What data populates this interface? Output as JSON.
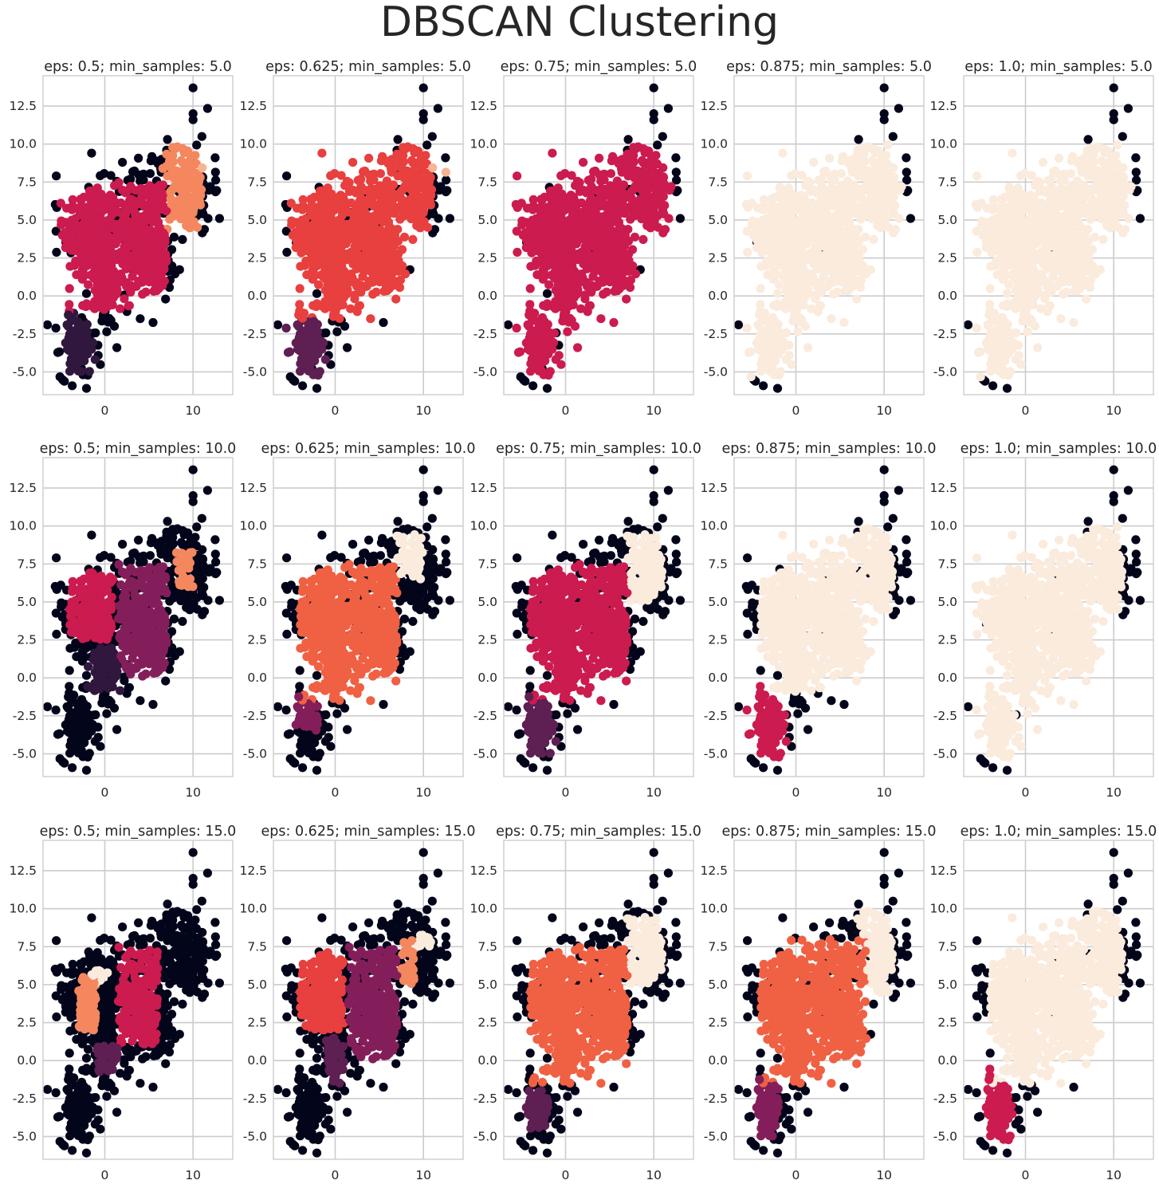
{
  "title": "DBSCAN Clustering",
  "palette": {
    "noise": "#03051a",
    "c1": "#30173d",
    "c2": "#5e1f53",
    "c3": "#841e5a",
    "c4": "#cb1b4f",
    "c5": "#e83f3f",
    "c6": "#f06043",
    "c7": "#f4875e",
    "c8": "#f7b495",
    "c9": "#faebdd"
  },
  "chart_data": [
    {
      "type": "scatter",
      "title": "eps: 0.5; min_samples: 5.0",
      "eps": 0.5,
      "min_samples": 5.0,
      "xlim": [
        -7,
        14.5
      ],
      "ylim": [
        -6.5,
        14.5
      ],
      "xticks": [
        "0",
        "10"
      ],
      "yticks": [
        "12.5",
        "10.0",
        "7.5",
        "5.0",
        "2.5",
        "0.0",
        "-2.5",
        "-5.0"
      ],
      "noise_fraction": 0.35,
      "clusters": [
        {
          "label": "c4",
          "x": [
            -5,
            7
          ],
          "y": [
            -1,
            7.5
          ]
        },
        {
          "label": "c1",
          "x": [
            -5,
            -1
          ],
          "y": [
            -5,
            -1
          ]
        },
        {
          "label": "c7",
          "x": [
            6.5,
            11
          ],
          "y": [
            4,
            10
          ]
        },
        {
          "label": "c8",
          "x": [
            11,
            12.5
          ],
          "y": [
            8,
            9
          ]
        }
      ]
    },
    {
      "type": "scatter",
      "title": "eps: 0.625; min_samples: 5.0",
      "eps": 0.625,
      "min_samples": 5.0,
      "xlim": [
        -7,
        14.5
      ],
      "ylim": [
        -6.5,
        14.5
      ],
      "xticks": [
        "0",
        "10"
      ],
      "yticks": [
        "12.5",
        "10.0",
        "7.5",
        "5.0",
        "2.5",
        "0.0",
        "-2.5",
        "-5.0"
      ],
      "noise_fraction": 0.2,
      "clusters": [
        {
          "label": "c5",
          "x": [
            -5,
            11
          ],
          "y": [
            -1.5,
            10
          ]
        },
        {
          "label": "c2",
          "x": [
            -6,
            -1
          ],
          "y": [
            -5.5,
            -1
          ]
        },
        {
          "label": "c8",
          "x": [
            11,
            13
          ],
          "y": [
            8,
            9
          ]
        }
      ]
    },
    {
      "type": "scatter",
      "title": "eps: 0.75; min_samples: 5.0",
      "eps": 0.75,
      "min_samples": 5.0,
      "xlim": [
        -7,
        14.5
      ],
      "ylim": [
        -6.5,
        14.5
      ],
      "xticks": [
        "0",
        "10"
      ],
      "yticks": [
        "12.5",
        "10.0",
        "7.5",
        "5.0",
        "2.5",
        "0.0",
        "-2.5",
        "-5.0"
      ],
      "noise_fraction": 0.12,
      "clusters": [
        {
          "label": "c4",
          "x": [
            -6,
            12
          ],
          "y": [
            -5.5,
            10
          ]
        },
        {
          "label": "c9",
          "x": [
            11,
            12
          ],
          "y": [
            8,
            9
          ]
        }
      ]
    },
    {
      "type": "scatter",
      "title": "eps: 0.875; min_samples: 5.0",
      "eps": 0.875,
      "min_samples": 5.0,
      "xlim": [
        -7,
        14.5
      ],
      "ylim": [
        -6.5,
        14.5
      ],
      "xticks": [
        "0",
        "10"
      ],
      "yticks": [
        "12.5",
        "10.0",
        "7.5",
        "5.0",
        "2.5",
        "0.0",
        "-2.5",
        "-5.0"
      ],
      "noise_fraction": 0.02,
      "clusters": [
        {
          "label": "c9",
          "x": [
            -6,
            12
          ],
          "y": [
            -5.5,
            10
          ]
        }
      ]
    },
    {
      "type": "scatter",
      "title": "eps: 1.0; min_samples: 5.0",
      "eps": 1.0,
      "min_samples": 5.0,
      "xlim": [
        -7,
        14.5
      ],
      "ylim": [
        -6.5,
        14.5
      ],
      "xticks": [
        "0",
        "10"
      ],
      "yticks": [
        "12.5",
        "10.0",
        "7.5",
        "5.0",
        "2.5",
        "0.0",
        "-2.5",
        "-5.0"
      ],
      "noise_fraction": 0.015,
      "clusters": [
        {
          "label": "c9",
          "x": [
            -6,
            12
          ],
          "y": [
            -5.5,
            10
          ]
        }
      ]
    },
    {
      "type": "scatter",
      "title": "eps: 0.5; min_samples: 10.0",
      "eps": 0.5,
      "min_samples": 10.0,
      "xlim": [
        -7,
        14.5
      ],
      "ylim": [
        -6.5,
        14.5
      ],
      "xticks": [
        "0",
        "10"
      ],
      "yticks": [
        "12.5",
        "10.0",
        "7.5",
        "5.0",
        "2.5",
        "0.0",
        "-2.5",
        "-5.0"
      ],
      "noise_fraction": 0.55,
      "clusters": [
        {
          "label": "c4",
          "x": [
            -4,
            1
          ],
          "y": [
            2.5,
            7
          ]
        },
        {
          "label": "c3",
          "x": [
            1.5,
            7
          ],
          "y": [
            0,
            7.5
          ]
        },
        {
          "label": "c1",
          "x": [
            -2,
            2
          ],
          "y": [
            -1,
            2
          ]
        },
        {
          "label": "c7",
          "x": [
            8,
            10
          ],
          "y": [
            6,
            8.5
          ]
        },
        {
          "label": "c9",
          "x": [
            8.5,
            9.5
          ],
          "y": [
            7.5,
            8
          ]
        }
      ]
    },
    {
      "type": "scatter",
      "title": "eps: 0.625; min_samples: 10.0",
      "eps": 0.625,
      "min_samples": 10.0,
      "xlim": [
        -7,
        14.5
      ],
      "ylim": [
        -6.5,
        14.5
      ],
      "xticks": [
        "0",
        "10"
      ],
      "yticks": [
        "12.5",
        "10.0",
        "7.5",
        "5.0",
        "2.5",
        "0.0",
        "-2.5",
        "-5.0"
      ],
      "noise_fraction": 0.3,
      "clusters": [
        {
          "label": "c6",
          "x": [
            -4,
            7
          ],
          "y": [
            -1.5,
            7.5
          ]
        },
        {
          "label": "c3",
          "x": [
            -5,
            -2
          ],
          "y": [
            -3.5,
            -1
          ]
        },
        {
          "label": "c9",
          "x": [
            7,
            10
          ],
          "y": [
            6.5,
            9.5
          ]
        }
      ]
    },
    {
      "type": "scatter",
      "title": "eps: 0.75; min_samples: 10.0",
      "eps": 0.75,
      "min_samples": 10.0,
      "xlim": [
        -7,
        14.5
      ],
      "ylim": [
        -6.5,
        14.5
      ],
      "xticks": [
        "0",
        "10"
      ],
      "yticks": [
        "12.5",
        "10.0",
        "7.5",
        "5.0",
        "2.5",
        "0.0",
        "-2.5",
        "-5.0"
      ],
      "noise_fraction": 0.25,
      "clusters": [
        {
          "label": "c4",
          "x": [
            -4,
            7
          ],
          "y": [
            -1.5,
            7.5
          ]
        },
        {
          "label": "c2",
          "x": [
            -5,
            -1
          ],
          "y": [
            -5,
            -1
          ]
        },
        {
          "label": "c9",
          "x": [
            7,
            11
          ],
          "y": [
            5,
            9.5
          ]
        },
        {
          "label": "c7",
          "x": [
            -4,
            -3
          ],
          "y": [
            0,
            1
          ]
        }
      ]
    },
    {
      "type": "scatter",
      "title": "eps: 0.875; min_samples: 10.0",
      "eps": 0.875,
      "min_samples": 10.0,
      "xlim": [
        -7,
        14.5
      ],
      "ylim": [
        -6.5,
        14.5
      ],
      "xticks": [
        "0",
        "10"
      ],
      "yticks": [
        "12.5",
        "10.0",
        "7.5",
        "5.0",
        "2.5",
        "0.0",
        "-2.5",
        "-5.0"
      ],
      "noise_fraction": 0.08,
      "clusters": [
        {
          "label": "c9",
          "x": [
            -4,
            11
          ],
          "y": [
            -1,
            10
          ]
        },
        {
          "label": "c4",
          "x": [
            -6,
            -1
          ],
          "y": [
            -5.5,
            -0.5
          ]
        }
      ]
    },
    {
      "type": "scatter",
      "title": "eps: 1.0; min_samples: 10.0",
      "eps": 1.0,
      "min_samples": 10.0,
      "xlim": [
        -7,
        14.5
      ],
      "ylim": [
        -6.5,
        14.5
      ],
      "xticks": [
        "0",
        "10"
      ],
      "yticks": [
        "12.5",
        "10.0",
        "7.5",
        "5.0",
        "2.5",
        "0.0",
        "-2.5",
        "-5.0"
      ],
      "noise_fraction": 0.04,
      "clusters": [
        {
          "label": "c9",
          "x": [
            -6,
            11
          ],
          "y": [
            -5.5,
            10
          ]
        }
      ]
    },
    {
      "type": "scatter",
      "title": "eps: 0.5; min_samples: 15.0",
      "eps": 0.5,
      "min_samples": 15.0,
      "xlim": [
        -7,
        14.5
      ],
      "ylim": [
        -6.5,
        14.5
      ],
      "xticks": [
        "0",
        "10"
      ],
      "yticks": [
        "12.5",
        "10.0",
        "7.5",
        "5.0",
        "2.5",
        "0.0",
        "-2.5",
        "-5.0"
      ],
      "noise_fraction": 0.65,
      "clusters": [
        {
          "label": "c4",
          "x": [
            1.5,
            6
          ],
          "y": [
            1,
            7.5
          ]
        },
        {
          "label": "c7",
          "x": [
            -3,
            -1
          ],
          "y": [
            2,
            5.5
          ]
        },
        {
          "label": "c2",
          "x": [
            -1,
            1.5
          ],
          "y": [
            -1,
            1
          ]
        },
        {
          "label": "c9",
          "x": [
            -1.5,
            0.5
          ],
          "y": [
            5,
            6
          ]
        }
      ]
    },
    {
      "type": "scatter",
      "title": "eps: 0.625; min_samples: 15.0",
      "eps": 0.625,
      "min_samples": 15.0,
      "xlim": [
        -7,
        14.5
      ],
      "ylim": [
        -6.5,
        14.5
      ],
      "xticks": [
        "0",
        "10"
      ],
      "yticks": [
        "12.5",
        "10.0",
        "7.5",
        "5.0",
        "2.5",
        "0.0",
        "-2.5",
        "-5.0"
      ],
      "noise_fraction": 0.45,
      "clusters": [
        {
          "label": "c5",
          "x": [
            -4,
            1
          ],
          "y": [
            2,
            7.5
          ]
        },
        {
          "label": "c3",
          "x": [
            1.5,
            7
          ],
          "y": [
            0,
            7.5
          ]
        },
        {
          "label": "c2",
          "x": [
            -1,
            1
          ],
          "y": [
            -1.5,
            1.5
          ]
        },
        {
          "label": "c7",
          "x": [
            7.5,
            9
          ],
          "y": [
            5,
            8
          ]
        },
        {
          "label": "c9",
          "x": [
            9,
            11
          ],
          "y": [
            7.5,
            8.5
          ]
        }
      ]
    },
    {
      "type": "scatter",
      "title": "eps: 0.75; min_samples: 15.0",
      "eps": 0.75,
      "min_samples": 15.0,
      "xlim": [
        -7,
        14.5
      ],
      "ylim": [
        -6.5,
        14.5
      ],
      "xticks": [
        "0",
        "10"
      ],
      "yticks": [
        "12.5",
        "10.0",
        "7.5",
        "5.0",
        "2.5",
        "0.0",
        "-2.5",
        "-5.0"
      ],
      "noise_fraction": 0.3,
      "clusters": [
        {
          "label": "c6",
          "x": [
            -4,
            7
          ],
          "y": [
            -1.5,
            7.5
          ]
        },
        {
          "label": "c2",
          "x": [
            -5,
            -2
          ],
          "y": [
            -4.5,
            -2
          ]
        },
        {
          "label": "c9",
          "x": [
            7,
            11
          ],
          "y": [
            5,
            9.5
          ]
        }
      ]
    },
    {
      "type": "scatter",
      "title": "eps: 0.875; min_samples: 15.0",
      "eps": 0.875,
      "min_samples": 15.0,
      "xlim": [
        -7,
        14.5
      ],
      "ylim": [
        -6.5,
        14.5
      ],
      "xticks": [
        "0",
        "10"
      ],
      "yticks": [
        "12.5",
        "10.0",
        "7.5",
        "5.0",
        "2.5",
        "0.0",
        "-2.5",
        "-5.0"
      ],
      "noise_fraction": 0.22,
      "clusters": [
        {
          "label": "c6",
          "x": [
            -4,
            8
          ],
          "y": [
            -1.5,
            8
          ]
        },
        {
          "label": "c3",
          "x": [
            -5,
            -2
          ],
          "y": [
            -5,
            -1
          ]
        },
        {
          "label": "c9",
          "x": [
            7,
            11
          ],
          "y": [
            4,
            10
          ]
        }
      ]
    },
    {
      "type": "scatter",
      "title": "eps: 1.0; min_samples: 15.0",
      "eps": 1.0,
      "min_samples": 15.0,
      "xlim": [
        -7,
        14.5
      ],
      "ylim": [
        -6.5,
        14.5
      ],
      "xticks": [
        "0",
        "10"
      ],
      "yticks": [
        "12.5",
        "10.0",
        "7.5",
        "5.0",
        "2.5",
        "0.0",
        "-2.5",
        "-5.0"
      ],
      "noise_fraction": 0.06,
      "clusters": [
        {
          "label": "c9",
          "x": [
            -4,
            11
          ],
          "y": [
            -1.5,
            10
          ]
        },
        {
          "label": "c4",
          "x": [
            -5,
            -1.5
          ],
          "y": [
            -5.5,
            -0.5
          ]
        }
      ]
    }
  ]
}
